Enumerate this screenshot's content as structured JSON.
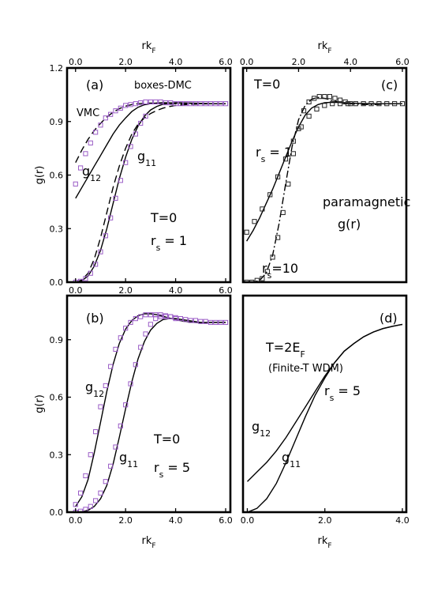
{
  "chart_data": [
    {
      "panel": "a",
      "type": "line",
      "xlim": [
        -0.15,
        6.0
      ],
      "ylim": [
        0.0,
        1.2
      ],
      "xticks": [
        "0.0",
        "2.0",
        "4.0",
        "6.0"
      ],
      "yticks": [
        "0.0",
        "0.3",
        "0.6",
        "0.9",
        "1.2"
      ],
      "ylabel": "g(r)",
      "top_xlabel": "rk_F",
      "annotations": [
        {
          "key": "panel",
          "text": "(a)"
        },
        {
          "key": "legend",
          "text": "boxes-DMC"
        },
        {
          "key": "vmc",
          "text": "VMC"
        },
        {
          "key": "g12",
          "text": "g",
          "sub": "12"
        },
        {
          "key": "g11",
          "text": "g",
          "sub": "11"
        },
        {
          "key": "temp",
          "text": "T=0"
        },
        {
          "key": "rs",
          "text": "r",
          "sub": "s",
          "tail": " = 1"
        }
      ],
      "series": [
        {
          "name": "g12",
          "style": "solid",
          "x": [
            0.0,
            0.25,
            0.5,
            0.75,
            1.0,
            1.25,
            1.5,
            1.75,
            2.0,
            2.25,
            2.5,
            2.75,
            3.0,
            3.25,
            3.5,
            4.0,
            4.5,
            5.0,
            5.5,
            6.0
          ],
          "y": [
            0.47,
            0.53,
            0.59,
            0.65,
            0.71,
            0.77,
            0.83,
            0.88,
            0.92,
            0.956,
            0.98,
            0.994,
            1.0,
            1.004,
            1.005,
            1.004,
            1.002,
            1.0,
            1.0,
            1.0
          ]
        },
        {
          "name": "g12 VMC",
          "style": "dashed",
          "x": [
            0.0,
            0.25,
            0.5,
            0.75,
            1.0,
            1.25,
            1.5,
            1.75,
            2.0,
            2.25,
            2.5,
            2.75,
            3.0,
            3.25,
            3.5,
            4.0,
            4.5,
            5.0,
            5.5,
            6.0
          ],
          "y": [
            0.67,
            0.74,
            0.8,
            0.85,
            0.89,
            0.925,
            0.952,
            0.972,
            0.986,
            0.995,
            1.0,
            1.002,
            1.003,
            1.002,
            1.001,
            1.0,
            1.0,
            1.0,
            1.0,
            1.0
          ]
        },
        {
          "name": "g11",
          "style": "solid",
          "x": [
            0.0,
            0.25,
            0.5,
            0.75,
            1.0,
            1.25,
            1.5,
            1.75,
            2.0,
            2.25,
            2.5,
            2.75,
            3.0,
            3.25,
            3.5,
            3.75,
            4.0,
            4.5,
            5.0,
            5.5,
            6.0
          ],
          "y": [
            0.0,
            0.008,
            0.035,
            0.09,
            0.18,
            0.3,
            0.44,
            0.58,
            0.7,
            0.8,
            0.875,
            0.93,
            0.965,
            0.985,
            0.997,
            1.003,
            1.005,
            1.004,
            1.002,
            1.0,
            1.0
          ]
        },
        {
          "name": "g11 VMC",
          "style": "dashed",
          "x": [
            0.0,
            0.25,
            0.5,
            0.75,
            1.0,
            1.25,
            1.5,
            1.75,
            2.0,
            2.25,
            2.5,
            2.75,
            3.0,
            3.25,
            3.5,
            3.75,
            4.0,
            4.5,
            5.0,
            5.5,
            6.0
          ],
          "y": [
            0.0,
            0.012,
            0.05,
            0.13,
            0.25,
            0.39,
            0.53,
            0.65,
            0.75,
            0.83,
            0.885,
            0.92,
            0.945,
            0.962,
            0.975,
            0.984,
            0.99,
            0.996,
            0.998,
            1.0,
            1.0
          ]
        },
        {
          "name": "DMC g12",
          "style": "box",
          "x": [
            0.0,
            0.2,
            0.4,
            0.6,
            0.8,
            1.0,
            1.2,
            1.4,
            1.6,
            1.8,
            2.0,
            2.2,
            2.4,
            2.6,
            2.8,
            3.0,
            3.2,
            3.4,
            3.6,
            3.8,
            4.0,
            4.2,
            4.4,
            4.6,
            4.8,
            5.0,
            5.2,
            5.4,
            5.6,
            5.8,
            6.0
          ],
          "y": [
            0.55,
            0.64,
            0.72,
            0.78,
            0.84,
            0.88,
            0.92,
            0.94,
            0.96,
            0.975,
            0.99,
            0.995,
            1.0,
            1.005,
            1.01,
            1.01,
            1.01,
            1.01,
            1.005,
            1.005,
            1.0,
            1.0,
            1.0,
            1.0,
            1.0,
            1.0,
            1.0,
            1.0,
            1.0,
            1.0,
            1.0
          ]
        },
        {
          "name": "DMC g11",
          "style": "box",
          "x": [
            0.0,
            0.2,
            0.4,
            0.6,
            0.8,
            1.0,
            1.2,
            1.4,
            1.6,
            1.8,
            2.0,
            2.2,
            2.4,
            2.6,
            2.8
          ],
          "y": [
            0.0,
            0.005,
            0.02,
            0.05,
            0.1,
            0.17,
            0.26,
            0.36,
            0.47,
            0.57,
            0.67,
            0.76,
            0.83,
            0.89,
            0.93
          ]
        }
      ]
    },
    {
      "panel": "b",
      "type": "line",
      "xlim": [
        -0.15,
        6.0
      ],
      "ylim": [
        0.0,
        1.13
      ],
      "xticks": [
        "0.0",
        "2.0",
        "4.0",
        "6.0"
      ],
      "yticks": [
        "0.0",
        "0.3",
        "0.6",
        "0.9"
      ],
      "ylabel": "g(r)",
      "xlabel": "rk_F",
      "annotations": [
        {
          "key": "panel",
          "text": "(b)"
        },
        {
          "key": "g12",
          "text": "g",
          "sub": "12"
        },
        {
          "key": "g11",
          "text": "g",
          "sub": "11"
        },
        {
          "key": "temp",
          "text": "T=0"
        },
        {
          "key": "rs",
          "text": "r",
          "sub": "s",
          "tail": " = 5"
        }
      ],
      "series": [
        {
          "name": "g12",
          "style": "solid",
          "x": [
            0.0,
            0.25,
            0.5,
            0.75,
            1.0,
            1.25,
            1.5,
            1.75,
            2.0,
            2.25,
            2.5,
            2.75,
            3.0,
            3.25,
            3.5,
            3.75,
            4.0,
            4.25,
            4.5,
            4.75,
            5.0,
            5.5,
            6.0
          ],
          "y": [
            0.03,
            0.08,
            0.17,
            0.31,
            0.47,
            0.63,
            0.77,
            0.88,
            0.955,
            1.0,
            1.025,
            1.035,
            1.035,
            1.03,
            1.022,
            1.013,
            1.005,
            0.998,
            0.993,
            0.99,
            0.988,
            0.99,
            0.99
          ]
        },
        {
          "name": "g11",
          "style": "solid",
          "x": [
            0.0,
            0.25,
            0.5,
            0.75,
            1.0,
            1.25,
            1.5,
            1.75,
            2.0,
            2.25,
            2.5,
            2.75,
            3.0,
            3.25,
            3.5,
            3.75,
            4.0,
            4.25,
            4.5,
            4.75,
            5.0,
            5.5,
            6.0
          ],
          "y": [
            0.0,
            0.002,
            0.01,
            0.03,
            0.07,
            0.14,
            0.25,
            0.39,
            0.54,
            0.68,
            0.8,
            0.89,
            0.95,
            0.985,
            1.005,
            1.01,
            1.01,
            1.005,
            1.0,
            0.995,
            0.99,
            0.99,
            0.99
          ]
        },
        {
          "name": "DMC g12",
          "style": "box",
          "x": [
            0.0,
            0.2,
            0.4,
            0.6,
            0.8,
            1.0,
            1.2,
            1.4,
            1.6,
            1.8,
            2.0,
            2.2,
            2.4,
            2.6,
            2.8,
            3.0,
            3.2,
            3.4,
            3.6,
            3.8,
            4.0,
            4.2,
            4.4,
            4.6,
            4.8,
            5.0,
            5.2,
            5.4,
            5.6,
            5.8,
            6.0
          ],
          "y": [
            0.04,
            0.1,
            0.19,
            0.3,
            0.42,
            0.55,
            0.66,
            0.76,
            0.85,
            0.91,
            0.96,
            0.99,
            1.01,
            1.02,
            1.03,
            1.03,
            1.03,
            1.03,
            1.025,
            1.02,
            1.015,
            1.01,
            1.005,
            1.0,
            1.0,
            0.995,
            0.995,
            0.99,
            0.99,
            0.99,
            0.99
          ]
        },
        {
          "name": "DMC g11",
          "style": "box",
          "x": [
            0.0,
            0.2,
            0.4,
            0.6,
            0.8,
            1.0,
            1.2,
            1.4,
            1.6,
            1.8,
            2.0,
            2.2,
            2.4,
            2.6,
            2.8,
            3.0,
            3.2,
            3.4,
            3.6,
            3.8,
            4.0
          ],
          "y": [
            0.0,
            0.005,
            0.015,
            0.03,
            0.06,
            0.1,
            0.16,
            0.24,
            0.34,
            0.45,
            0.56,
            0.67,
            0.77,
            0.86,
            0.93,
            0.98,
            1.01,
            1.02,
            1.02,
            1.02,
            1.01
          ]
        }
      ]
    },
    {
      "panel": "c",
      "type": "line",
      "xlim": [
        -0.05,
        6.0
      ],
      "ylim": [
        0.0,
        1.2
      ],
      "top_xticks": [
        "0.0",
        "2.0",
        "4.0",
        "6.0"
      ],
      "top_xlabel": "rk_F",
      "annotations": [
        {
          "key": "panel",
          "text": "(c)"
        },
        {
          "key": "temp",
          "text": "T=0"
        },
        {
          "key": "rs1",
          "text": "r",
          "sub": "s",
          "tail": " = 1"
        },
        {
          "key": "para1",
          "text": "paramagnetic"
        },
        {
          "key": "para2",
          "text": "g(r)"
        },
        {
          "key": "rs10",
          "text": "r",
          "sub": "s",
          "tail": "=10"
        }
      ],
      "series": [
        {
          "name": "rs=1",
          "style": "solid",
          "x": [
            0.0,
            0.25,
            0.5,
            0.75,
            1.0,
            1.25,
            1.5,
            1.75,
            2.0,
            2.25,
            2.5,
            2.75,
            3.0,
            3.25,
            3.5,
            3.75,
            4.0,
            4.5,
            5.0,
            5.5,
            6.0
          ],
          "y": [
            0.23,
            0.29,
            0.36,
            0.44,
            0.52,
            0.61,
            0.7,
            0.79,
            0.87,
            0.935,
            0.975,
            0.995,
            1.005,
            1.008,
            1.007,
            1.005,
            1.003,
            1.001,
            1.0,
            1.0,
            1.0
          ]
        },
        {
          "name": "rs=10",
          "style": "dashdot",
          "x": [
            0.0,
            0.25,
            0.5,
            0.75,
            1.0,
            1.25,
            1.5,
            1.75,
            2.0,
            2.25,
            2.5,
            2.75,
            3.0,
            3.25,
            3.5,
            3.75,
            4.0,
            4.5,
            5.0,
            5.5,
            6.0
          ],
          "y": [
            0.0,
            0.001,
            0.01,
            0.05,
            0.15,
            0.33,
            0.55,
            0.76,
            0.91,
            0.99,
            1.025,
            1.035,
            1.03,
            1.02,
            1.01,
            1.005,
            1.0,
            0.995,
            0.995,
            1.0,
            1.0
          ]
        },
        {
          "name": "boxes rs=1",
          "style": "box",
          "x": [
            0.0,
            0.3,
            0.6,
            0.9,
            1.2,
            1.5,
            1.8,
            2.1,
            2.4,
            2.7,
            3.0,
            3.3,
            3.6,
            3.9,
            4.2,
            4.5,
            4.8,
            5.1,
            5.4,
            5.7,
            6.0
          ],
          "y": [
            0.28,
            0.34,
            0.41,
            0.49,
            0.59,
            0.69,
            0.79,
            0.87,
            0.93,
            0.97,
            0.99,
            1.0,
            1.0,
            1.0,
            1.0,
            1.0,
            1.0,
            1.0,
            1.0,
            1.0,
            1.0
          ]
        },
        {
          "name": "boxes rs=10",
          "style": "box",
          "x": [
            0.0,
            0.2,
            0.4,
            0.6,
            0.8,
            1.0,
            1.2,
            1.4,
            1.6,
            1.8,
            2.0,
            2.2,
            2.4,
            2.6,
            2.8,
            3.0,
            3.2,
            3.4,
            3.6,
            3.8,
            4.0
          ],
          "y": [
            0.0,
            0.0,
            0.01,
            0.02,
            0.06,
            0.14,
            0.25,
            0.39,
            0.55,
            0.72,
            0.86,
            0.96,
            1.01,
            1.03,
            1.04,
            1.04,
            1.04,
            1.03,
            1.02,
            1.01,
            1.0
          ]
        }
      ]
    },
    {
      "panel": "d",
      "type": "line",
      "xlim": [
        -0.05,
        4.0
      ],
      "ylim": [
        0.0,
        1.13
      ],
      "xticks": [
        "0.0",
        "2.0",
        "4.0"
      ],
      "xlabel": "rk_F",
      "annotations": [
        {
          "key": "panel",
          "text": "(d)"
        },
        {
          "key": "temp",
          "text": "T=2E",
          "sub": "F"
        },
        {
          "key": "wdm",
          "text": "(Finite-T WDM)"
        },
        {
          "key": "rs",
          "text": "r",
          "sub": "s",
          "tail": " = 5"
        },
        {
          "key": "g12",
          "text": "g",
          "sub": "12"
        },
        {
          "key": "g11",
          "text": "g",
          "sub": "11"
        }
      ],
      "series": [
        {
          "name": "g12",
          "style": "solid",
          "x": [
            0.0,
            0.25,
            0.5,
            0.75,
            1.0,
            1.25,
            1.5,
            1.75,
            2.0,
            2.25,
            2.5,
            2.75,
            3.0,
            3.25,
            3.5,
            3.75,
            4.0
          ],
          "y": [
            0.16,
            0.21,
            0.26,
            0.32,
            0.39,
            0.47,
            0.55,
            0.63,
            0.71,
            0.78,
            0.84,
            0.88,
            0.915,
            0.94,
            0.958,
            0.97,
            0.98
          ]
        },
        {
          "name": "g11",
          "style": "solid",
          "x": [
            0.0,
            0.25,
            0.5,
            0.75,
            1.0,
            1.25,
            1.5,
            1.75,
            2.0,
            2.25,
            2.5,
            2.75,
            3.0,
            3.25,
            3.5,
            3.75,
            4.0
          ],
          "y": [
            0.0,
            0.02,
            0.07,
            0.15,
            0.26,
            0.38,
            0.5,
            0.61,
            0.7,
            0.78,
            0.84,
            0.88,
            0.915,
            0.94,
            0.958,
            0.97,
            0.98
          ]
        }
      ]
    }
  ],
  "colors": {
    "axes": "#000000",
    "curves": "#000000",
    "boxes": "#9a5cc6",
    "boxes_c": "#222222"
  }
}
